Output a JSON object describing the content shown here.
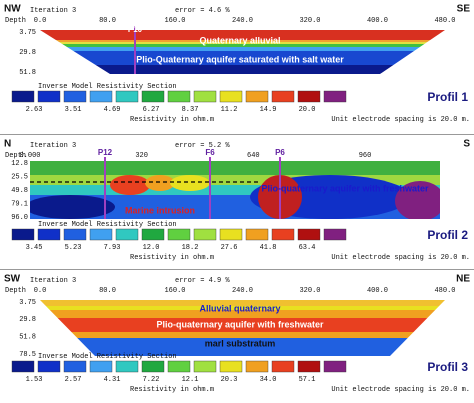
{
  "profiles": [
    {
      "direction_left": "NW",
      "direction_right": "SE",
      "depth_label": "Depth",
      "iteration": "Iteration 3",
      "error": "error = 4.6 %",
      "x_labels": [
        "0.0",
        "80.0",
        "160.0",
        "240.0",
        "320.0",
        "400.0",
        "480.0"
      ],
      "depth_values": [
        "3.75",
        "29.8",
        "51.8"
      ],
      "markers": [
        "P10"
      ],
      "annotations": [
        "Quaternary alluvial",
        "Plio-Quaternary aquifer saturated with salt water"
      ],
      "legend_title": "Inverse Model Resistivity Section",
      "legend_values": [
        "2.63",
        "3.51",
        "4.69",
        "6.27",
        "8.37",
        "11.2",
        "14.9",
        "20.0"
      ],
      "units": "Resistivity in ohm.m",
      "spacing": "Unit electrode spacing is 20.0 m.",
      "profile_name": "Profil 1"
    },
    {
      "direction_left": "N",
      "direction_right": "S",
      "depth_label": "Depth",
      "iteration": "Iteration 3",
      "error": "error = 5.2 %",
      "x_labels": [
        "0.000",
        "320",
        "640",
        "960"
      ],
      "depth_values": [
        "12.8",
        "25.5",
        "49.8",
        "79.1",
        "96.0"
      ],
      "markers": [
        "P12",
        "F6",
        "P6"
      ],
      "annotations": [
        "Marine intrusion",
        "Plio-quaternary aquifer with freshwater"
      ],
      "legend_title": "Inverse Model Resistivity Section",
      "legend_values": [
        "3.45",
        "5.23",
        "7.93",
        "12.0",
        "18.2",
        "27.6",
        "41.8",
        "63.4"
      ],
      "units": "Resistivity in ohm.m",
      "spacing": "Unit electrode spacing is 20.0 m.",
      "profile_name": "Profil 2"
    },
    {
      "direction_left": "SW",
      "direction_right": "NE",
      "depth_label": "Depth",
      "iteration": "Iteration 3",
      "error": "error = 4.9 %",
      "x_labels": [
        "0.0",
        "80.0",
        "160.0",
        "240.0",
        "320.0",
        "400.0",
        "480.0"
      ],
      "depth_values": [
        "3.75",
        "29.8",
        "51.8",
        "78.5"
      ],
      "markers": [],
      "annotations": [
        "Alluvial quaternary",
        "Plio-quaternary aquifer with freshwater",
        "marl substratum"
      ],
      "legend_title": "Inverse Model Resistivity Section",
      "legend_values": [
        "1.53",
        "2.57",
        "4.31",
        "7.22",
        "12.1",
        "20.3",
        "34.0",
        "57.1"
      ],
      "units": "Resistivity in ohm.m",
      "spacing": "Unit electrode spacing is 20.0 m.",
      "profile_name": "Profil 3"
    }
  ]
}
